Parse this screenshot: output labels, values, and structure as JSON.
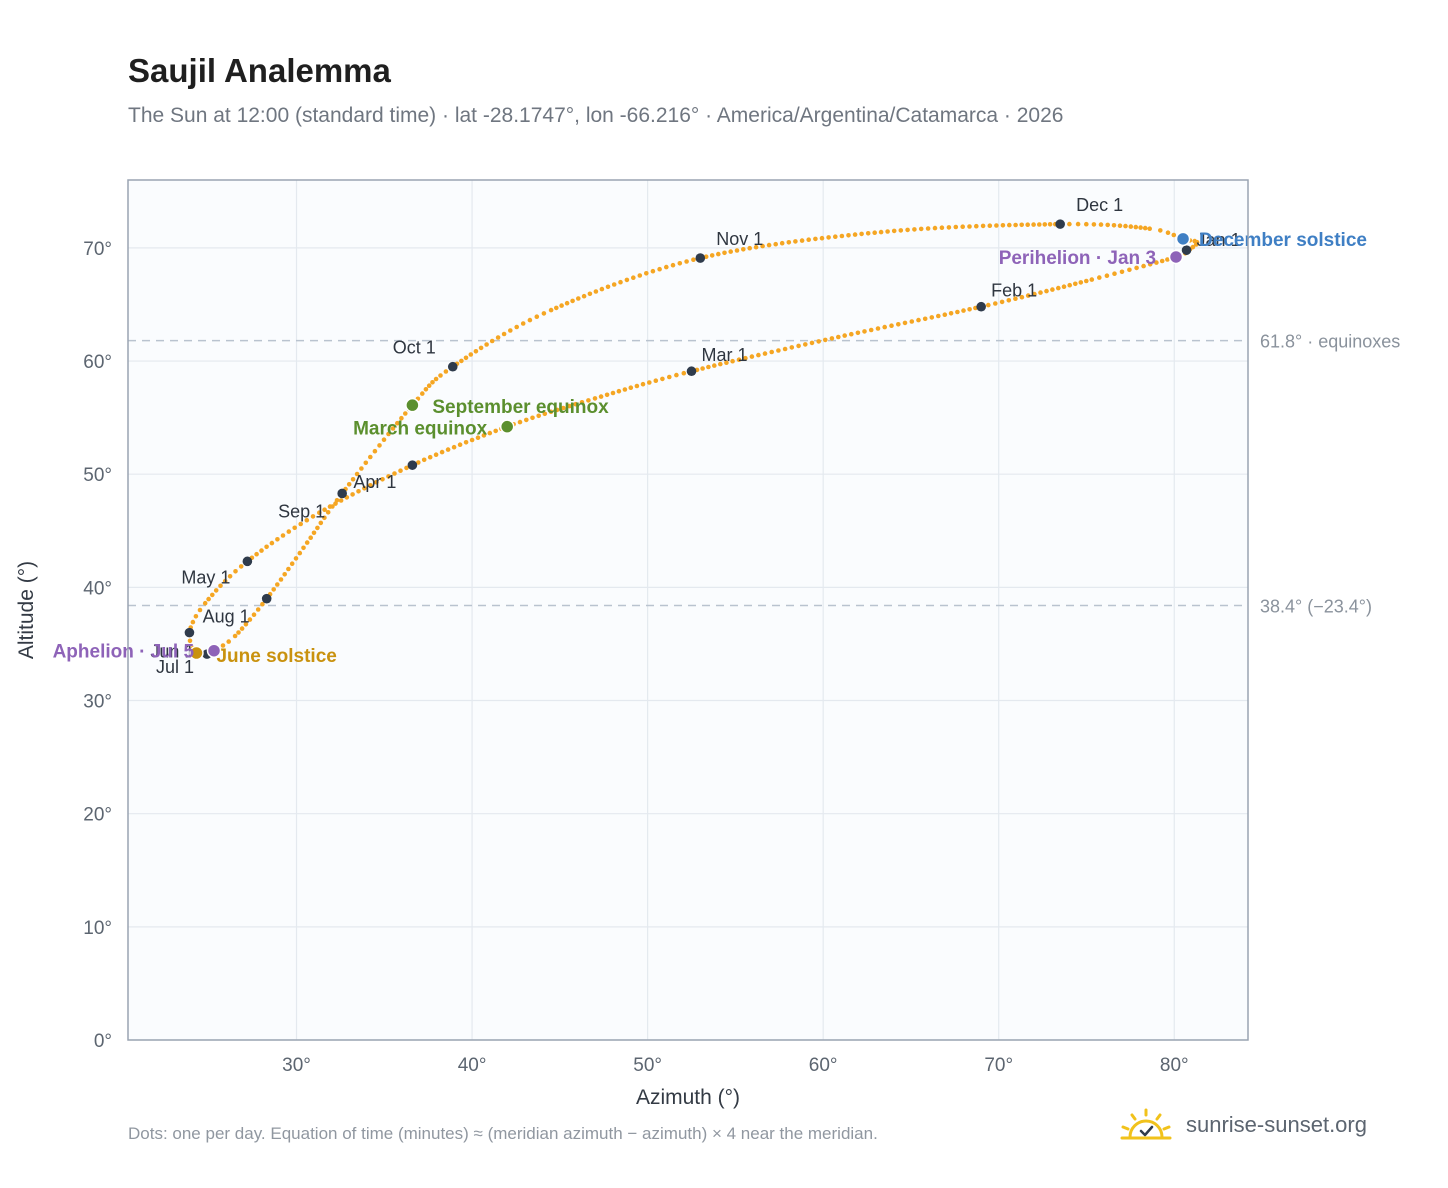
{
  "title": "Saujil Analemma",
  "subtitle": "The Sun at 12:00 (standard time) · lat -28.1747°, lon -66.216° · America/Argentina/Catamarca · 2026",
  "footnote": "Dots: one per day. Equation of time (minutes) ≈ (meridian azimuth − azimuth) × 4 near the meridian.",
  "brand": {
    "text": "sunrise-sunset.org",
    "icon": "sun-check-icon"
  },
  "colors": {
    "path": "#f5a623",
    "month_marker": "#2f3b4c",
    "equinox": "#5b8f2e",
    "june_solstice": "#c9920f",
    "december_solstice": "#3f7fc4",
    "apsis": "#8e63b8",
    "grid": "#e4e9ef",
    "frame": "#9aa4b2",
    "plot_bg": "#fafcfe"
  },
  "chart_data": {
    "type": "scatter",
    "xlabel": "Azimuth (°)",
    "ylabel": "Altitude (°)",
    "xlim": [
      20.4,
      84.2
    ],
    "ylim": [
      0,
      76
    ],
    "x_ticks": [
      {
        "value": 30,
        "label": "30°"
      },
      {
        "value": 40,
        "label": "40°"
      },
      {
        "value": 50,
        "label": "50°"
      },
      {
        "value": 60,
        "label": "60°"
      },
      {
        "value": 70,
        "label": "70°"
      },
      {
        "value": 80,
        "label": "80°"
      }
    ],
    "y_ticks": [
      {
        "value": 0,
        "label": "0°"
      },
      {
        "value": 10,
        "label": "10°"
      },
      {
        "value": 20,
        "label": "20°"
      },
      {
        "value": 30,
        "label": "30°"
      },
      {
        "value": 40,
        "label": "40°"
      },
      {
        "value": 50,
        "label": "50°"
      },
      {
        "value": 60,
        "label": "60°"
      },
      {
        "value": 70,
        "label": "70°"
      }
    ],
    "grid": true,
    "reference_lines": [
      {
        "y": 61.8,
        "label": "61.8° · equinoxes"
      },
      {
        "y": 38.4,
        "label": "38.4° (−23.4°)"
      }
    ],
    "path_anchors": [
      {
        "date": "Jan 1",
        "az": 80.7,
        "alt": 69.8
      },
      {
        "date": "Jan 3",
        "az": 80.1,
        "alt": 69.2
      },
      {
        "date": "Jan 18",
        "az": 75.3,
        "alt": 67.2
      },
      {
        "date": "Feb 1",
        "az": 69.0,
        "alt": 64.8
      },
      {
        "date": "Feb 15",
        "az": 60.5,
        "alt": 62.0
      },
      {
        "date": "Mar 1",
        "az": 52.5,
        "alt": 59.1
      },
      {
        "date": "Mar 10",
        "az": 47.0,
        "alt": 56.7
      },
      {
        "date": "Mar 20",
        "az": 42.0,
        "alt": 54.2
      },
      {
        "date": "Apr 1",
        "az": 36.6,
        "alt": 50.8
      },
      {
        "date": "Apr 16",
        "az": 31.3,
        "alt": 46.6
      },
      {
        "date": "May 1",
        "az": 27.2,
        "alt": 42.3
      },
      {
        "date": "May 16",
        "az": 24.8,
        "alt": 38.6
      },
      {
        "date": "Jun 1",
        "az": 23.9,
        "alt": 36.0
      },
      {
        "date": "Jun 21",
        "az": 24.3,
        "alt": 34.2
      },
      {
        "date": "Jul 1",
        "az": 24.9,
        "alt": 34.1
      },
      {
        "date": "Jul 5",
        "az": 25.3,
        "alt": 34.4
      },
      {
        "date": "Jul 15",
        "az": 26.5,
        "alt": 35.7
      },
      {
        "date": "Aug 1",
        "az": 28.3,
        "alt": 39.0
      },
      {
        "date": "Aug 16",
        "az": 30.4,
        "alt": 43.5
      },
      {
        "date": "Sep 1",
        "az": 32.6,
        "alt": 48.3
      },
      {
        "date": "Sep 22",
        "az": 36.6,
        "alt": 56.1
      },
      {
        "date": "Oct 1",
        "az": 38.9,
        "alt": 59.5
      },
      {
        "date": "Oct 16",
        "az": 44.5,
        "alt": 64.5
      },
      {
        "date": "Nov 1",
        "az": 53.0,
        "alt": 69.1
      },
      {
        "date": "Nov 16",
        "az": 63.3,
        "alt": 71.4
      },
      {
        "date": "Dec 1",
        "az": 73.5,
        "alt": 72.1
      },
      {
        "date": "Dec 11",
        "az": 78.6,
        "alt": 71.7
      },
      {
        "date": "Dec 21",
        "az": 80.5,
        "alt": 70.8
      },
      {
        "date": "Dec 26",
        "az": 81.3,
        "alt": 70.5
      },
      {
        "date": "Dec 31",
        "az": 80.9,
        "alt": 69.9
      }
    ],
    "month_markers": [
      {
        "label": "Jan 1",
        "az": 80.7,
        "alt": 69.8,
        "anchor": "start",
        "dx": 10,
        "dy": -4
      },
      {
        "label": "Feb 1",
        "az": 69.0,
        "alt": 64.8,
        "anchor": "start",
        "dx": 10,
        "dy": -10
      },
      {
        "label": "Mar 1",
        "az": 52.5,
        "alt": 59.1,
        "anchor": "start",
        "dx": 10,
        "dy": -10
      },
      {
        "label": "Apr 1",
        "az": 36.6,
        "alt": 50.8,
        "anchor": "end",
        "dx": -16,
        "dy": 23
      },
      {
        "label": "May 1",
        "az": 27.2,
        "alt": 42.3,
        "anchor": "end",
        "dx": -17,
        "dy": 22
      },
      {
        "label": "Jun 1",
        "az": 23.9,
        "alt": 36.0,
        "anchor": "end",
        "dx": 5,
        "dy": 25
      },
      {
        "label": "Jul 1",
        "az": 24.9,
        "alt": 34.1,
        "anchor": "end",
        "dx": -13,
        "dy": 19
      },
      {
        "label": "Aug 1",
        "az": 28.3,
        "alt": 39.0,
        "anchor": "end",
        "dx": -17,
        "dy": 24
      },
      {
        "label": "Sep 1",
        "az": 32.6,
        "alt": 48.3,
        "anchor": "end",
        "dx": -17,
        "dy": 24
      },
      {
        "label": "Oct 1",
        "az": 38.9,
        "alt": 59.5,
        "anchor": "end",
        "dx": -17,
        "dy": -13
      },
      {
        "label": "Nov 1",
        "az": 53.0,
        "alt": 69.1,
        "anchor": "start",
        "dx": 16,
        "dy": -13
      },
      {
        "label": "Dec 1",
        "az": 73.5,
        "alt": 72.1,
        "anchor": "start",
        "dx": 16,
        "dy": -13
      }
    ],
    "events": [
      {
        "label": "December solstice",
        "az": 80.5,
        "alt": 70.8,
        "color_key": "december_solstice",
        "anchor": "start",
        "dx": 16,
        "dy": 7
      },
      {
        "label": "Perihelion · Jan 3",
        "az": 80.1,
        "alt": 69.2,
        "color_key": "apsis",
        "anchor": "end",
        "dx": -20,
        "dy": 7
      },
      {
        "label": "March equinox",
        "az": 42.0,
        "alt": 54.2,
        "color_key": "equinox",
        "anchor": "end",
        "dx": -20,
        "dy": 8
      },
      {
        "label": "September equinox",
        "az": 36.6,
        "alt": 56.1,
        "color_key": "equinox",
        "anchor": "start",
        "dx": 20,
        "dy": 8
      },
      {
        "label": "June solstice",
        "az": 24.3,
        "alt": 34.2,
        "color_key": "june_solstice",
        "anchor": "start",
        "dx": 20,
        "dy": 9
      },
      {
        "label": "Aphelion · Jul 5",
        "az": 25.3,
        "alt": 34.4,
        "color_key": "apsis",
        "anchor": "end",
        "dx": -20,
        "dy": 7
      }
    ]
  }
}
